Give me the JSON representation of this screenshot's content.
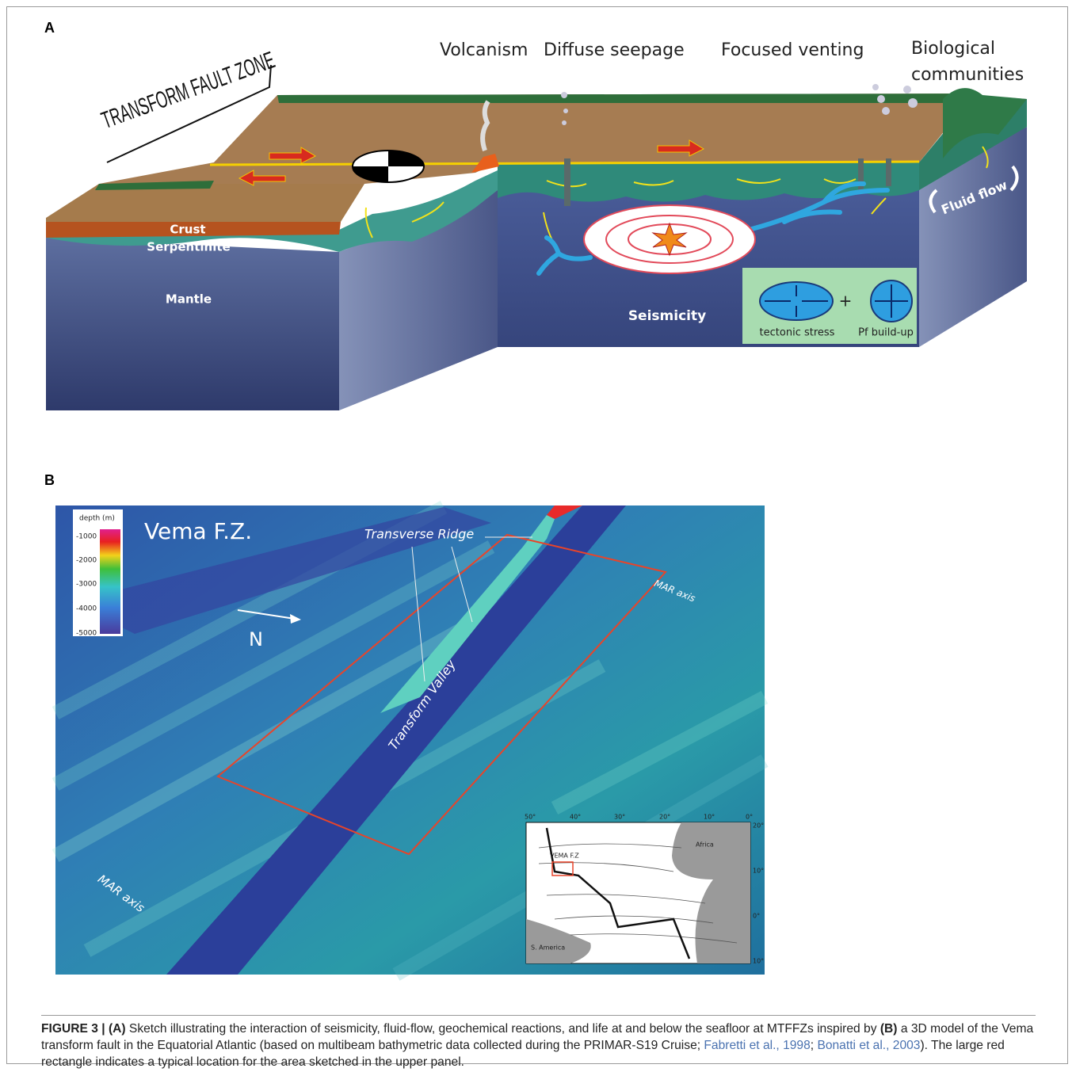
{
  "panel_a": {
    "label": "A",
    "title": "TRANSFORM FAULT ZONE",
    "processes": [
      "Volcanism",
      "Diffuse seepage",
      "Focused venting",
      "Biological",
      "communities"
    ],
    "layers": [
      "Crust",
      "Serpentinite",
      "Mantle"
    ],
    "fluid_flow": "Fluid flow",
    "seismicity": "Seismicity",
    "stress": [
      "tectonic stress",
      "+",
      "Pf build-up"
    ]
  },
  "panel_b": {
    "label": "B",
    "title": "Vema F.Z.",
    "legend_title": "depth (m)",
    "legend_ticks": [
      "-1000",
      "-2000",
      "-3000",
      "-4000",
      "-5000"
    ],
    "annotations": [
      "Transverse Ridge",
      "Transform Valley",
      "MAR axis",
      "MAR axis"
    ],
    "north": "N",
    "inset": {
      "lon_ticks": [
        "50°",
        "40°",
        "30°",
        "20°",
        "10°",
        "0°"
      ],
      "lat_ticks": [
        "20°",
        "10°",
        "0°",
        "10°"
      ],
      "labels": [
        "VEMA F.Z",
        "Africa",
        "S. America"
      ]
    }
  },
  "caption": {
    "segments": [
      {
        "text": "FIGURE 3 | (A)",
        "style": "bold"
      },
      {
        "text": " Sketch illustrating the interaction of seismicity, fluid-flow, geochemical reactions, and life at and below the seafloor at MTFFZs inspired by ",
        "style": "normal"
      },
      {
        "text": "(B)",
        "style": "bold"
      },
      {
        "text": " a 3D model of the Vema transform fault in the Equatorial Atlantic (based on multibeam bathymetric data collected during the PRIMAR-S19 Cruise; ",
        "style": "normal"
      },
      {
        "text": "Fabretti et al., 1998",
        "style": "link"
      },
      {
        "text": "; ",
        "style": "normal"
      },
      {
        "text": "Bonatti et al., 2003",
        "style": "link"
      },
      {
        "text": "). The large red rectangle indicates a typical location for the area sketched in the upper panel.",
        "style": "normal"
      }
    ]
  }
}
